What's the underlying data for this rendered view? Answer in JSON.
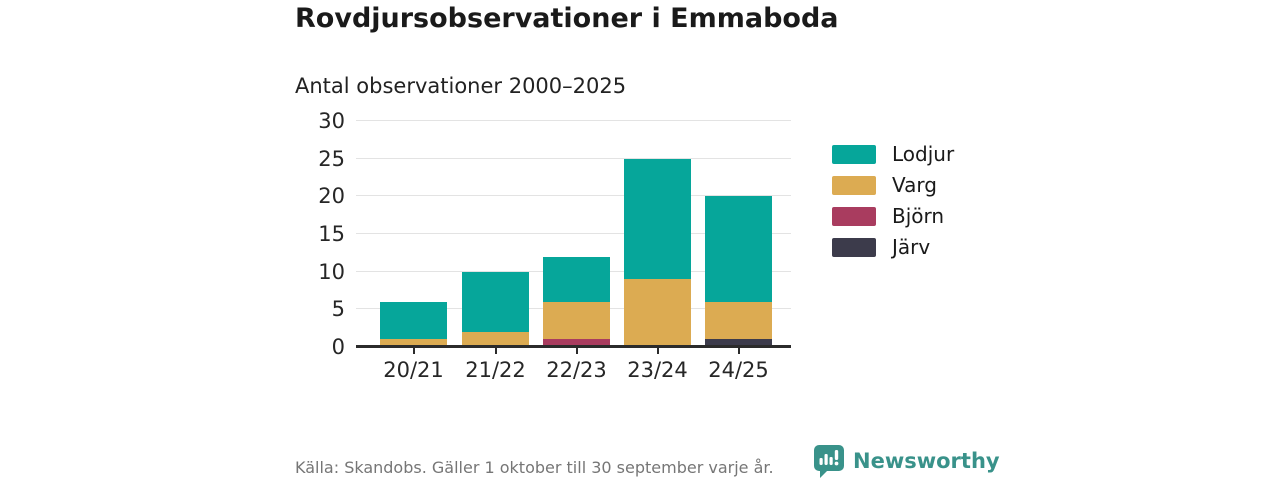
{
  "page": {
    "title": "Rovdjursobservationer i Emmaboda",
    "subtitle": "Antal observationer 2000–2025"
  },
  "chart_data": {
    "type": "bar",
    "stacked": true,
    "title": "Rovdjursobservationer i Emmaboda",
    "subtitle": "Antal observationer 2000–2025",
    "categories": [
      "20/21",
      "21/22",
      "22/23",
      "23/24",
      "24/25"
    ],
    "series": [
      {
        "name": "Lodjur",
        "color": "#06a69a",
        "values": [
          5,
          8,
          6,
          16,
          14
        ]
      },
      {
        "name": "Varg",
        "color": "#dcab52",
        "values": [
          1,
          2,
          5,
          9,
          5
        ]
      },
      {
        "name": "Björn",
        "color": "#a93c5f",
        "values": [
          0,
          0,
          1,
          0,
          0
        ]
      },
      {
        "name": "Järv",
        "color": "#3c3b4b",
        "values": [
          0,
          0,
          0,
          0,
          1
        ]
      }
    ],
    "totals": [
      6,
      10,
      12,
      25,
      20
    ],
    "stack_order_bottom_to_top": [
      "Järv",
      "Björn",
      "Varg",
      "Lodjur"
    ],
    "xlabel": "",
    "ylabel": "",
    "ylim": [
      0,
      30
    ],
    "yticks": [
      0,
      5,
      10,
      15,
      20,
      25,
      30
    ],
    "grid": true,
    "legend_position": "right"
  },
  "footer": {
    "source_text": "Källa: Skandobs. Gäller 1 oktober till 30 september varje år.",
    "brand_name": "Newsworthy",
    "brand_logo_icon": "speech-bubble-bar-chart-exclamation"
  },
  "colors": {
    "lodjur": "#06a69a",
    "varg": "#dcab52",
    "bjorn": "#a93c5f",
    "jarv": "#3c3b4b",
    "brand_teal": "#39928a",
    "gridline": "#e3e3e3",
    "axis": "#2b2b2b",
    "text_dark": "#1a1a1a",
    "text_muted": "#767676"
  }
}
